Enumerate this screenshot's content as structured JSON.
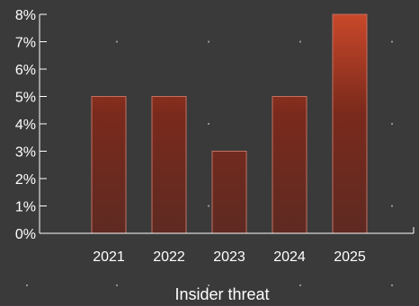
{
  "chart_data": {
    "type": "bar",
    "title": "",
    "xlabel": "Insider threat",
    "ylabel": "",
    "categories": [
      "2021",
      "2022",
      "2023",
      "2024",
      "2025"
    ],
    "series": [
      {
        "values": [
          5,
          5,
          3,
          5,
          8
        ]
      }
    ],
    "ylim": [
      0,
      8
    ],
    "yticks": [
      0,
      1,
      2,
      3,
      4,
      5,
      6,
      7,
      8
    ],
    "y_tick_format": "percent",
    "y_tick_labels": [
      "0%",
      "1%",
      "2%",
      "3%",
      "4%",
      "5%",
      "6%",
      "7%",
      "8%"
    ],
    "grid": "dotted",
    "legend": "none"
  },
  "colors": {
    "background": "#3a3a3a",
    "axis": "#ffffff",
    "text": "#ffffff",
    "bar_low": "#7a2a1c",
    "bar_high": "#c9482a",
    "bar_edge": "#c47060",
    "grid_dot": "#9a9a9a"
  }
}
